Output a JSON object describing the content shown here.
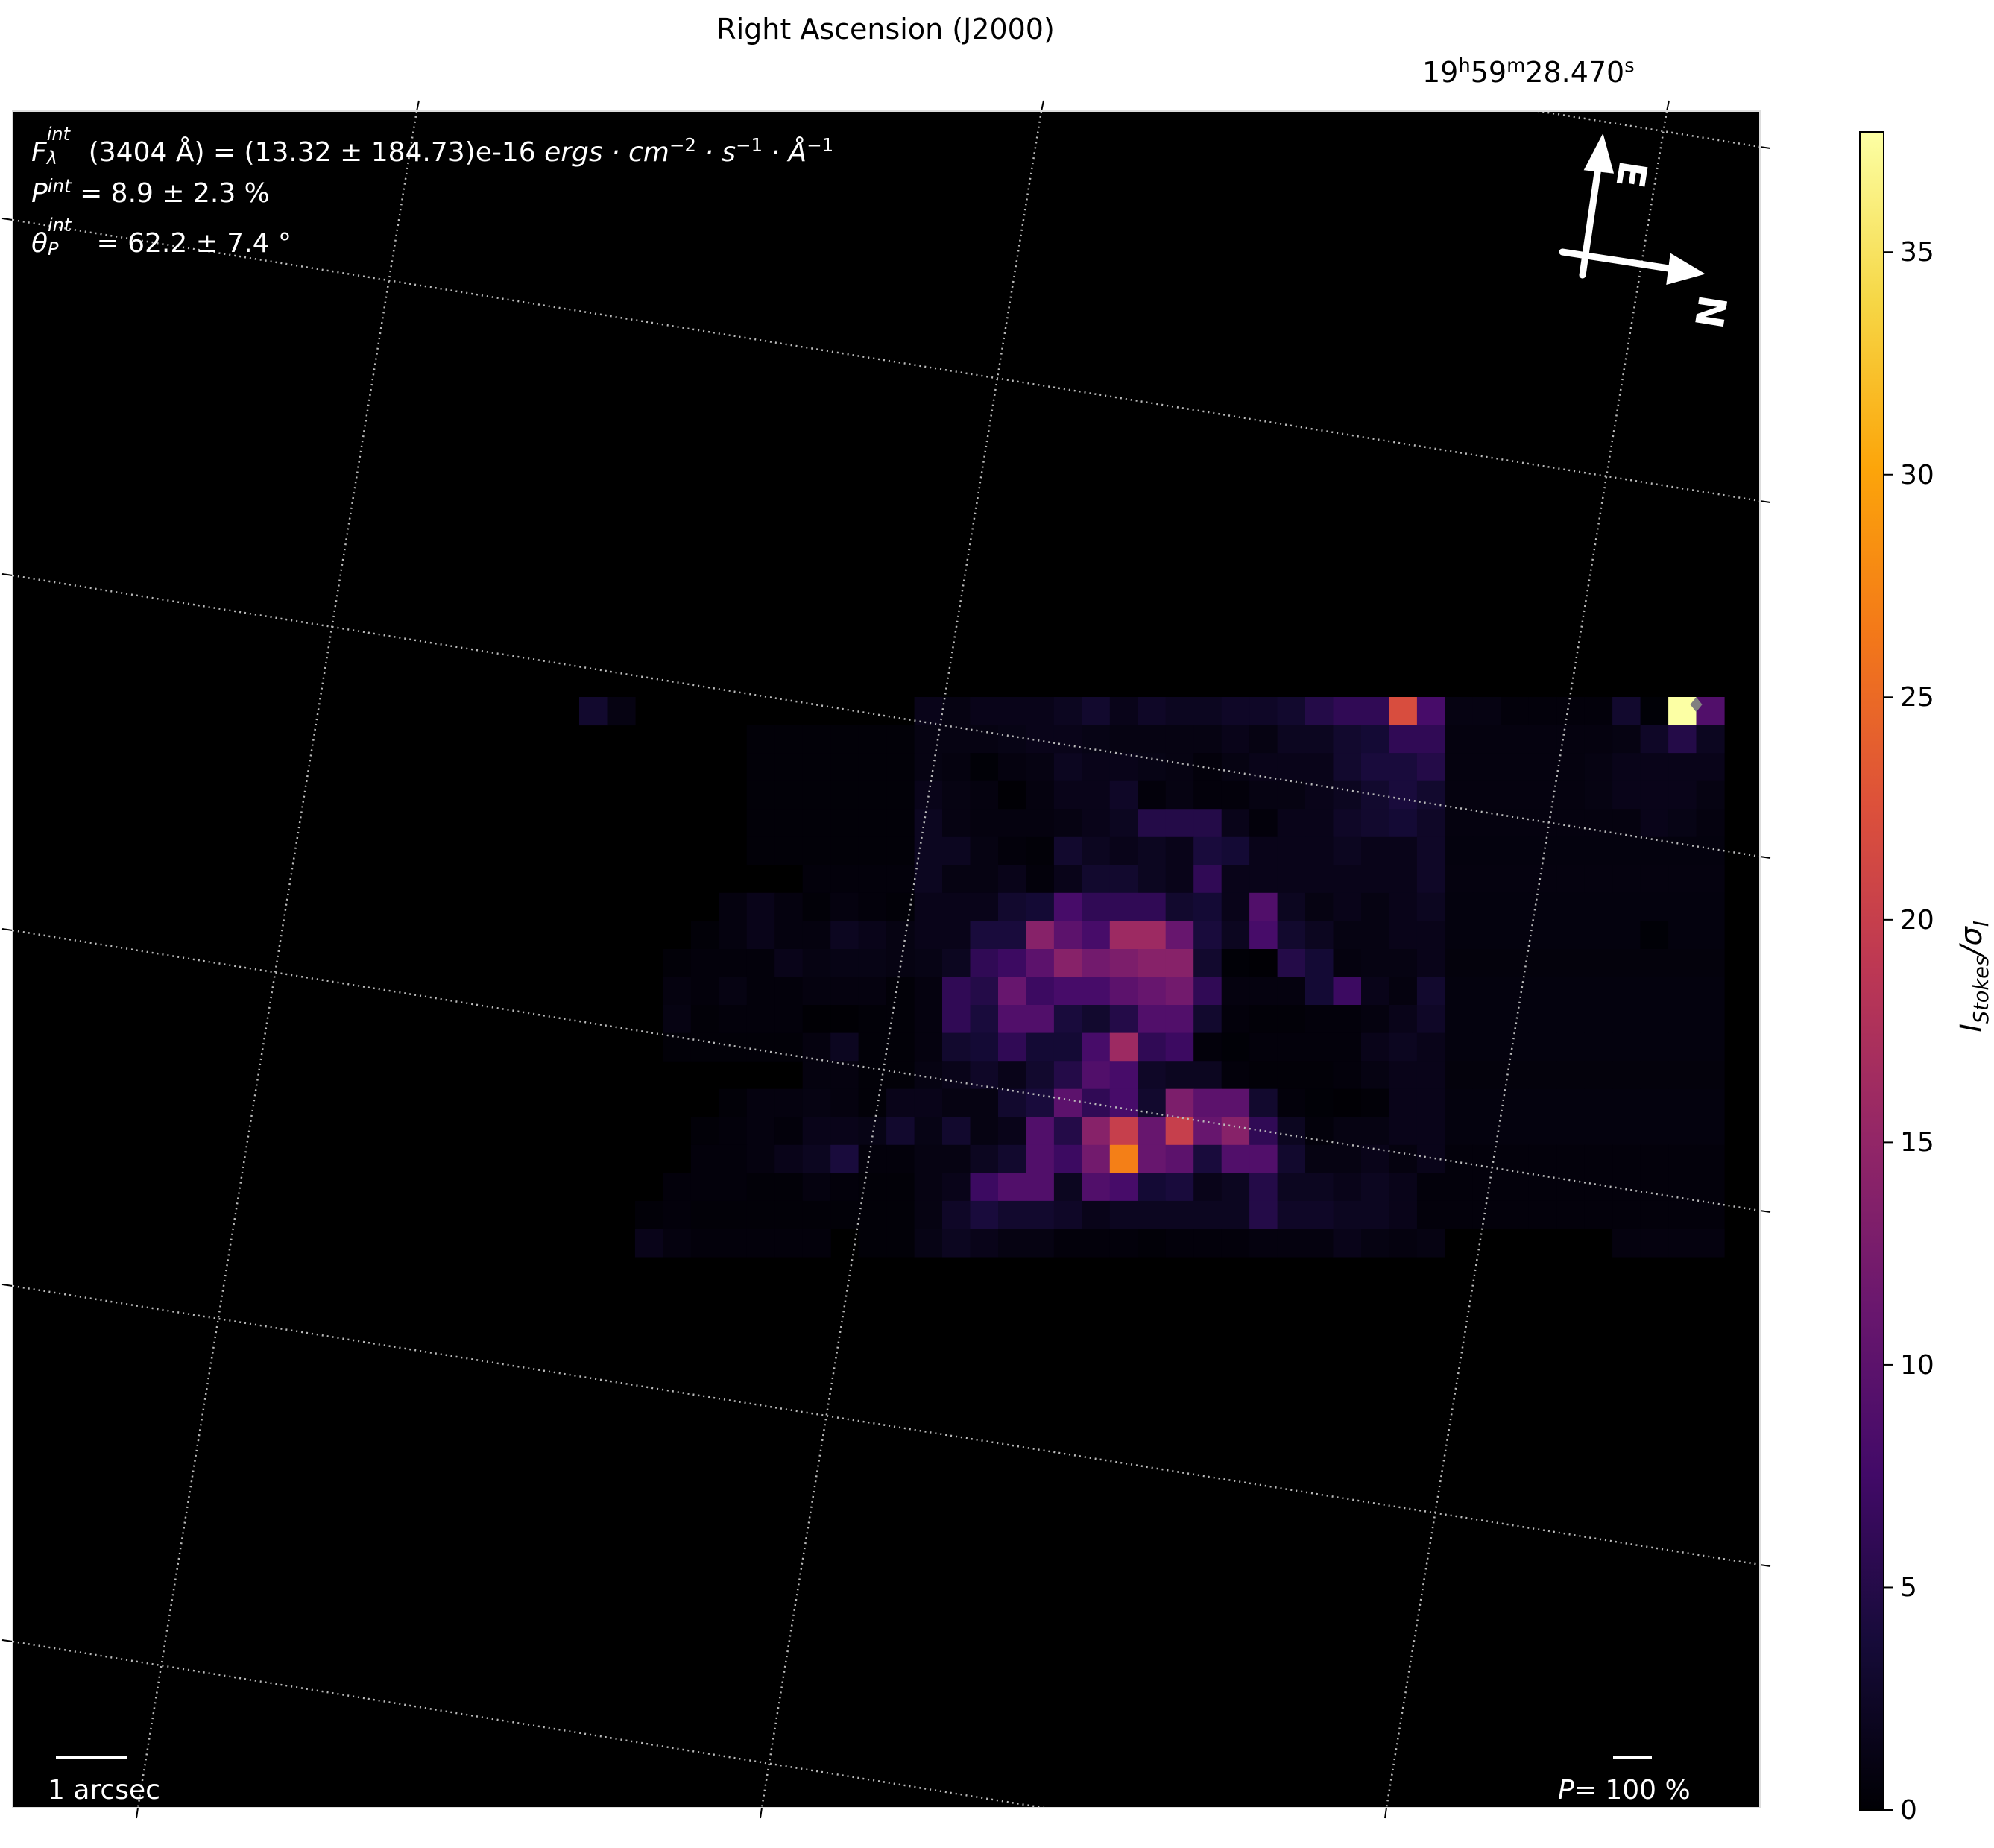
{
  "chart_data": {
    "type": "heatmap",
    "colormap": "inferno",
    "title": "",
    "top_axis_label": "Right Ascension (J2000)",
    "top_tick_label": {
      "h": "19",
      "m": "59",
      "s": "28.470",
      "h_unit": "h",
      "m_unit": "m",
      "s_unit": "s"
    },
    "grid": true,
    "colorbar": {
      "label_main": "I",
      "label_sub": "Stokes",
      "label_sep": "/σ",
      "label_sub2": "I",
      "range": [
        0,
        37.7
      ],
      "ticks": [
        "0",
        "5",
        "10",
        "15",
        "20",
        "25",
        "30",
        "35"
      ],
      "tick_values": [
        0,
        5,
        10,
        15,
        20,
        25,
        30,
        35
      ]
    },
    "values": [
      [
        3,
        1,
        0,
        0,
        0,
        0,
        0,
        0,
        0,
        0,
        0,
        0,
        1.5,
        1,
        1.5,
        1.5,
        1.5,
        2,
        3,
        1.5,
        2.5,
        2,
        2,
        2.5,
        2.5,
        3,
        5,
        6,
        6,
        22,
        8,
        1,
        1,
        0.5,
        0.5,
        0.5,
        0.5,
        3,
        0.2,
        38,
        9
      ],
      [
        0,
        0,
        0,
        0,
        0,
        0,
        0.3,
        0.3,
        0.3,
        0.3,
        0.3,
        0.3,
        1,
        1,
        1,
        1.2,
        1.5,
        1.5,
        1.2,
        1,
        1,
        1,
        1,
        1.5,
        1,
        2,
        2,
        3,
        3.5,
        6,
        6,
        0.8,
        0.8,
        0.8,
        0.8,
        0.8,
        0.8,
        1,
        2.5,
        5,
        2
      ],
      [
        0,
        0,
        0,
        0,
        0,
        0,
        0.3,
        0.3,
        0.3,
        0.3,
        0.3,
        0.3,
        1,
        0.8,
        0.2,
        0.8,
        1,
        2,
        1.5,
        1.5,
        1.2,
        1,
        0.5,
        1,
        1.5,
        1.5,
        1.5,
        3,
        4,
        4,
        5,
        0.8,
        0.8,
        0.8,
        0.8,
        0.8,
        1,
        1.5,
        1.5,
        1.5,
        1.5
      ],
      [
        0,
        0,
        0,
        0,
        0,
        0,
        0.3,
        0.3,
        0.3,
        0.3,
        0.3,
        0.3,
        1.5,
        1,
        0.8,
        0.1,
        0.8,
        1.5,
        1.5,
        2.5,
        0.5,
        1,
        0.5,
        0.5,
        1,
        1,
        1.5,
        2,
        3,
        4,
        3,
        0.8,
        0.8,
        0.8,
        0.8,
        0.8,
        1,
        1.5,
        1.5,
        1.5,
        1
      ],
      [
        0,
        0,
        0,
        0,
        0,
        0,
        0.3,
        0.3,
        0.3,
        0.3,
        0.3,
        0.3,
        2,
        1,
        0.8,
        0.8,
        0.8,
        1,
        1.5,
        2,
        5,
        5,
        5,
        1.5,
        0.5,
        1.5,
        1.5,
        2.5,
        3,
        3.5,
        2.5,
        0.8,
        0.8,
        0.8,
        0.8,
        0.8,
        0.8,
        0.8,
        1.5,
        1.2,
        0.8
      ],
      [
        0,
        0,
        0,
        0,
        0,
        0,
        0.3,
        0.3,
        0.3,
        0.3,
        0.3,
        0.3,
        2,
        2,
        1,
        0.5,
        0.3,
        3,
        2,
        1.5,
        2,
        1.5,
        4,
        3.5,
        1.5,
        1.5,
        1.5,
        2,
        1.5,
        1.5,
        2.5,
        0.7,
        0.7,
        0.7,
        0.7,
        0.7,
        0.7,
        0.7,
        0.7,
        0.7,
        0.7
      ],
      [
        0,
        0,
        0,
        0,
        0,
        0,
        0,
        0,
        0.5,
        0.5,
        0.5,
        0.5,
        2,
        1,
        1,
        1.5,
        0.5,
        1.5,
        3,
        3,
        2,
        1.5,
        6,
        1.5,
        1.5,
        1.5,
        1.5,
        1.5,
        1.5,
        1.5,
        2.5,
        0.8,
        0.8,
        0.8,
        0.8,
        0.8,
        0.8,
        0.8,
        0.8,
        0.8,
        0.8
      ],
      [
        0,
        0,
        0,
        0,
        0,
        0.8,
        1.5,
        0.8,
        0.3,
        0.8,
        0.5,
        0.3,
        1.5,
        1.5,
        1.5,
        3,
        3.5,
        8,
        6,
        6,
        6,
        3,
        3.5,
        1.5,
        9,
        2,
        1,
        1.5,
        1,
        1.5,
        2,
        0.7,
        0.7,
        0.7,
        0.7,
        0.7,
        0.7,
        0.7,
        0.7,
        0.7,
        0.7
      ],
      [
        0,
        0,
        0,
        0,
        0.3,
        0.8,
        1.5,
        0.8,
        0.8,
        2,
        1.5,
        1,
        1.5,
        1.5,
        4,
        4,
        14,
        10,
        8,
        16,
        16,
        11,
        4,
        2,
        8,
        3,
        2,
        1,
        1,
        1.5,
        1.5,
        0.7,
        0.7,
        0.7,
        0.7,
        0.7,
        0.7,
        0.7,
        0.2,
        0.7,
        0.7
      ],
      [
        0,
        0,
        0,
        0.3,
        0.5,
        0.5,
        0.5,
        1.5,
        1,
        1.2,
        1.2,
        1,
        1.2,
        2,
        6,
        7,
        10,
        14,
        12,
        13,
        14,
        14,
        3,
        0.2,
        0.1,
        5,
        3.5,
        0.8,
        1,
        1,
        1.5,
        0.6,
        0.6,
        0.6,
        0.6,
        0.6,
        0.6,
        0.6,
        0.6,
        0.6,
        0.6
      ],
      [
        0,
        0,
        0,
        0.8,
        0.5,
        1,
        0.5,
        0.5,
        0.8,
        0.8,
        0.8,
        0.3,
        0.8,
        6,
        5,
        11,
        7,
        8,
        8,
        10,
        11,
        12,
        6,
        0.8,
        0.8,
        0.8,
        3.5,
        7,
        1.5,
        0.8,
        3,
        0.7,
        0.7,
        0.7,
        0.7,
        0.7,
        0.7,
        0.7,
        0.7,
        0.7,
        0.7
      ],
      [
        0,
        0,
        0,
        1,
        0.3,
        0.5,
        0.5,
        0.5,
        0.1,
        0.1,
        0.3,
        0.3,
        0.8,
        6,
        4,
        9,
        9,
        4,
        3,
        5,
        9,
        9,
        3,
        0.5,
        0.3,
        0.3,
        0.5,
        0.5,
        0.8,
        1.5,
        2.5,
        0.7,
        0.7,
        0.7,
        0.7,
        0.7,
        0.7,
        0.7,
        0.7,
        0.7,
        0.7
      ],
      [
        0,
        0,
        0,
        0.3,
        0.3,
        0.3,
        0.3,
        0.3,
        0.8,
        2,
        0.3,
        0.3,
        0.8,
        3,
        3.5,
        6,
        3.5,
        3.5,
        8,
        16,
        6,
        7,
        0.5,
        0.2,
        0.5,
        0.5,
        0.5,
        0.5,
        1.5,
        2,
        1.5,
        0.7,
        0.7,
        0.7,
        0.7,
        0.7,
        0.7,
        0.7,
        0.7,
        0.7,
        0.7
      ],
      [
        0,
        0,
        0,
        0,
        0,
        0,
        0,
        0,
        0.8,
        0.8,
        0.3,
        0.3,
        1,
        1.5,
        2.5,
        1.5,
        3,
        5,
        9,
        8,
        2.5,
        2,
        2,
        0.5,
        0.3,
        0.3,
        0.3,
        0.5,
        1,
        1.5,
        1.5,
        0.6,
        0.6,
        0.6,
        0.6,
        0.6,
        0.6,
        0.6,
        0.6,
        0.6,
        0.6
      ],
      [
        0,
        0,
        0,
        0,
        0,
        0.3,
        0.8,
        0.8,
        1,
        0.8,
        0.3,
        1.5,
        1.5,
        1,
        1,
        3,
        4,
        10,
        6,
        8,
        3,
        13,
        10,
        10,
        3,
        0.5,
        0.2,
        0.1,
        0.3,
        1.5,
        1.5,
        0.7,
        0.7,
        0.7,
        0.7,
        0.7,
        0.7,
        0.7,
        0.7,
        0.7,
        0.7
      ],
      [
        0,
        0,
        0,
        0,
        0.3,
        0.5,
        0.8,
        0.5,
        1.5,
        1.5,
        1.2,
        3,
        1.2,
        3,
        1,
        1.5,
        9,
        5,
        14,
        20,
        11,
        20,
        11,
        14,
        6,
        2,
        0.5,
        1,
        1,
        1.5,
        1.5,
        0.7,
        0.7,
        0.7,
        0.7,
        0.7,
        0.7,
        0.7,
        0.7,
        0.7,
        0.7
      ],
      [
        0,
        0,
        0,
        0,
        0.5,
        0.5,
        0.8,
        1.5,
        2,
        4,
        0.5,
        0.5,
        1,
        1,
        2,
        3,
        9,
        7,
        12,
        27,
        11,
        10,
        4,
        9,
        9,
        3,
        1,
        1,
        1.5,
        0.8,
        1.5,
        0.5,
        0.5,
        0.5,
        0.5,
        0.5,
        0.5,
        0.5,
        0.5,
        0.5,
        0.5
      ],
      [
        0,
        0,
        0,
        0.5,
        0.5,
        0.5,
        0.3,
        0.3,
        0.8,
        0.5,
        0.3,
        0.3,
        1,
        1.5,
        7,
        9,
        9,
        2,
        9,
        8,
        3.5,
        4,
        1.5,
        2,
        5,
        2,
        2,
        1.5,
        2,
        1.5,
        0.5,
        0.5,
        0.5,
        0.5,
        0.5,
        0.5,
        0.5,
        0.5,
        0.5,
        0.5,
        0.5
      ],
      [
        0,
        0,
        0.3,
        0.5,
        0.3,
        0.3,
        0.3,
        0.3,
        0.3,
        0.3,
        0.3,
        0.3,
        1,
        2.5,
        4,
        3,
        3,
        2.5,
        1.5,
        2,
        2,
        2,
        2,
        2,
        5,
        2.5,
        2.5,
        2,
        2,
        1.5,
        0.5,
        0.5,
        0.5,
        0.5,
        0.5,
        0.5,
        0.5,
        0.5,
        0.5,
        0.5,
        0.5
      ],
      [
        0,
        0,
        1.5,
        0.8,
        0.5,
        0.5,
        0.5,
        0.5,
        0.5,
        0,
        0.3,
        0.3,
        1.2,
        2,
        1.5,
        1,
        1,
        0.5,
        0.5,
        0.5,
        0.3,
        0.5,
        0.5,
        0.5,
        0.8,
        0.8,
        0.8,
        1.5,
        1,
        0.8,
        1,
        0,
        0,
        0,
        0,
        0,
        0,
        0.8,
        0.8,
        0.8,
        0.8
      ]
    ],
    "marker": {
      "shape": "diamond",
      "color": "#808080"
    }
  },
  "annotations": {
    "flux": {
      "symbol": "F",
      "sup": "int",
      "sub": "λ",
      "text": "(3404 Å) = (13.32 ± 184.73)e-16 ",
      "unit": "ergs · cm",
      "e1": "−2",
      "u2": " · s",
      "e2": "−1",
      "u3": " · Å",
      "e3": "−1"
    },
    "pol": {
      "symbol": "P",
      "sup": "int",
      "text": " = 8.9 ± 2.3 %"
    },
    "angle": {
      "symbol": "θ",
      "sup": "int",
      "sub": "P",
      "text": " = 62.2 ± 7.4 °"
    },
    "scalebar": "1 arcsec",
    "pol_scale": {
      "symbol": "P",
      "text": "= 100 %"
    },
    "compass": {
      "east": "E",
      "north": "N"
    }
  },
  "colors": {
    "background": "#000000",
    "grid": "#bbbbbb",
    "text_overlay": "#ffffff"
  }
}
